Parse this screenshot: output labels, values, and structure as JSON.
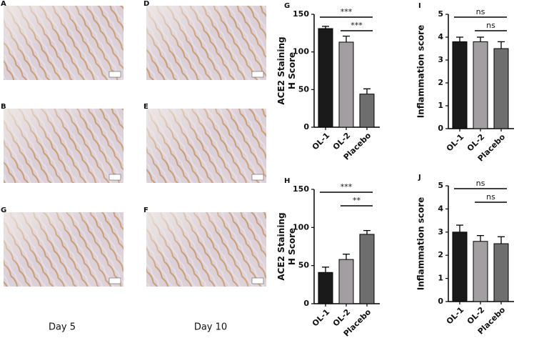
{
  "image_panels": [
    {
      "label": "A"
    },
    {
      "label": "D"
    },
    {
      "label": "B"
    },
    {
      "label": "E"
    },
    {
      "label": "G"
    },
    {
      "label": "F"
    }
  ],
  "columns": [
    "Day 5",
    "Day 10"
  ],
  "chart_data": [
    {
      "type": "bar",
      "label": "G",
      "ylabel": [
        "ACE2 Staining",
        "H Score"
      ],
      "categories": [
        "OL-1",
        "OL-2",
        "Placebo"
      ],
      "values": [
        131,
        113,
        44
      ],
      "errors": [
        3,
        8,
        7
      ],
      "colors": [
        "#1a1a1a",
        "#a39ea2",
        "#6e6e6e"
      ],
      "ylim": [
        0,
        150
      ],
      "yticks": [
        0,
        50,
        100,
        150
      ],
      "significance": [
        {
          "from": "OL-1",
          "to": "Placebo",
          "label": "***"
        },
        {
          "from": "OL-2",
          "to": "Placebo",
          "label": "***"
        }
      ]
    },
    {
      "type": "bar",
      "label": "I",
      "ylabel": [
        "Inflammation score"
      ],
      "categories": [
        "OL-1",
        "OL-2",
        "Placebo"
      ],
      "values": [
        3.8,
        3.8,
        3.5
      ],
      "errors": [
        0.2,
        0.2,
        0.3
      ],
      "colors": [
        "#1a1a1a",
        "#a39ea2",
        "#6e6e6e"
      ],
      "ylim": [
        0,
        5
      ],
      "yticks": [
        0,
        1,
        2,
        3,
        4,
        5
      ],
      "significance": [
        {
          "from": "OL-1",
          "to": "Placebo",
          "label": "ns"
        },
        {
          "from": "OL-2",
          "to": "Placebo",
          "label": "ns"
        }
      ]
    },
    {
      "type": "bar",
      "label": "H",
      "ylabel": [
        "ACE2 Staining",
        "H Score"
      ],
      "categories": [
        "OL-1",
        "OL-2",
        "Placebo"
      ],
      "values": [
        41,
        58,
        91
      ],
      "errors": [
        7,
        7,
        5
      ],
      "colors": [
        "#1a1a1a",
        "#a39ea2",
        "#6e6e6e"
      ],
      "ylim": [
        0,
        150
      ],
      "yticks": [
        0,
        50,
        100,
        150
      ],
      "significance": [
        {
          "from": "OL-1",
          "to": "Placebo",
          "label": "***"
        },
        {
          "from": "OL-2",
          "to": "Placebo",
          "label": "**"
        }
      ]
    },
    {
      "type": "bar",
      "label": "J",
      "ylabel": [
        "Inflammation score"
      ],
      "categories": [
        "OL-1",
        "OL-2",
        "Placebo"
      ],
      "values": [
        3.0,
        2.6,
        2.5
      ],
      "errors": [
        0.3,
        0.25,
        0.3
      ],
      "colors": [
        "#1a1a1a",
        "#a39ea2",
        "#6e6e6e"
      ],
      "ylim": [
        0,
        5
      ],
      "yticks": [
        0,
        1,
        2,
        3,
        4,
        5
      ],
      "significance": [
        {
          "from": "OL-1",
          "to": "Placebo",
          "label": "ns"
        },
        {
          "from": "OL-2",
          "to": "Placebo",
          "label": "ns"
        }
      ]
    }
  ]
}
